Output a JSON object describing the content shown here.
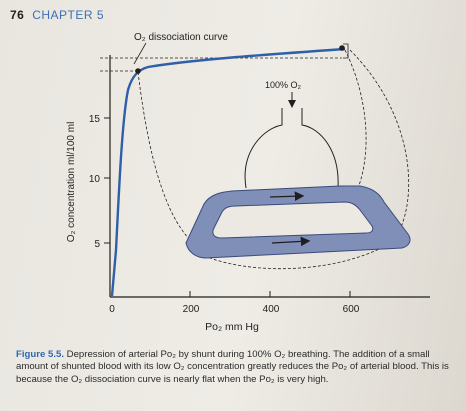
{
  "header": {
    "page_number": "76",
    "chapter": "CHAPTER 5"
  },
  "figure": {
    "curve_label": "O₂ dissociation curve",
    "input_label": "100% O₂",
    "y_axis_label": "O₂ concentration ml/100 ml",
    "y_ticks": [
      "15",
      "10",
      "5"
    ],
    "x_ticks": [
      "0",
      "200",
      "400",
      "600"
    ],
    "x_axis_label": "Po₂ mm Hg"
  },
  "caption": {
    "label": "Figure 5.5.",
    "text": "Depression of arterial Po₂ by shunt during 100% O₂ breathing. The addition of a small amount of shunted blood with its low O₂ concentration greatly reduces the Po₂ of arterial blood. This is because the O₂ dissociation curve is nearly flat when the Po₂ is very high."
  },
  "colors": {
    "axis": "#1f1f1f",
    "curve": "#2f5fa8",
    "vessel": "#7f8fb8",
    "vessel_outline": "#3b4a7a",
    "chapter": "#3d6fb2",
    "caption_label": "#2d68b3"
  }
}
